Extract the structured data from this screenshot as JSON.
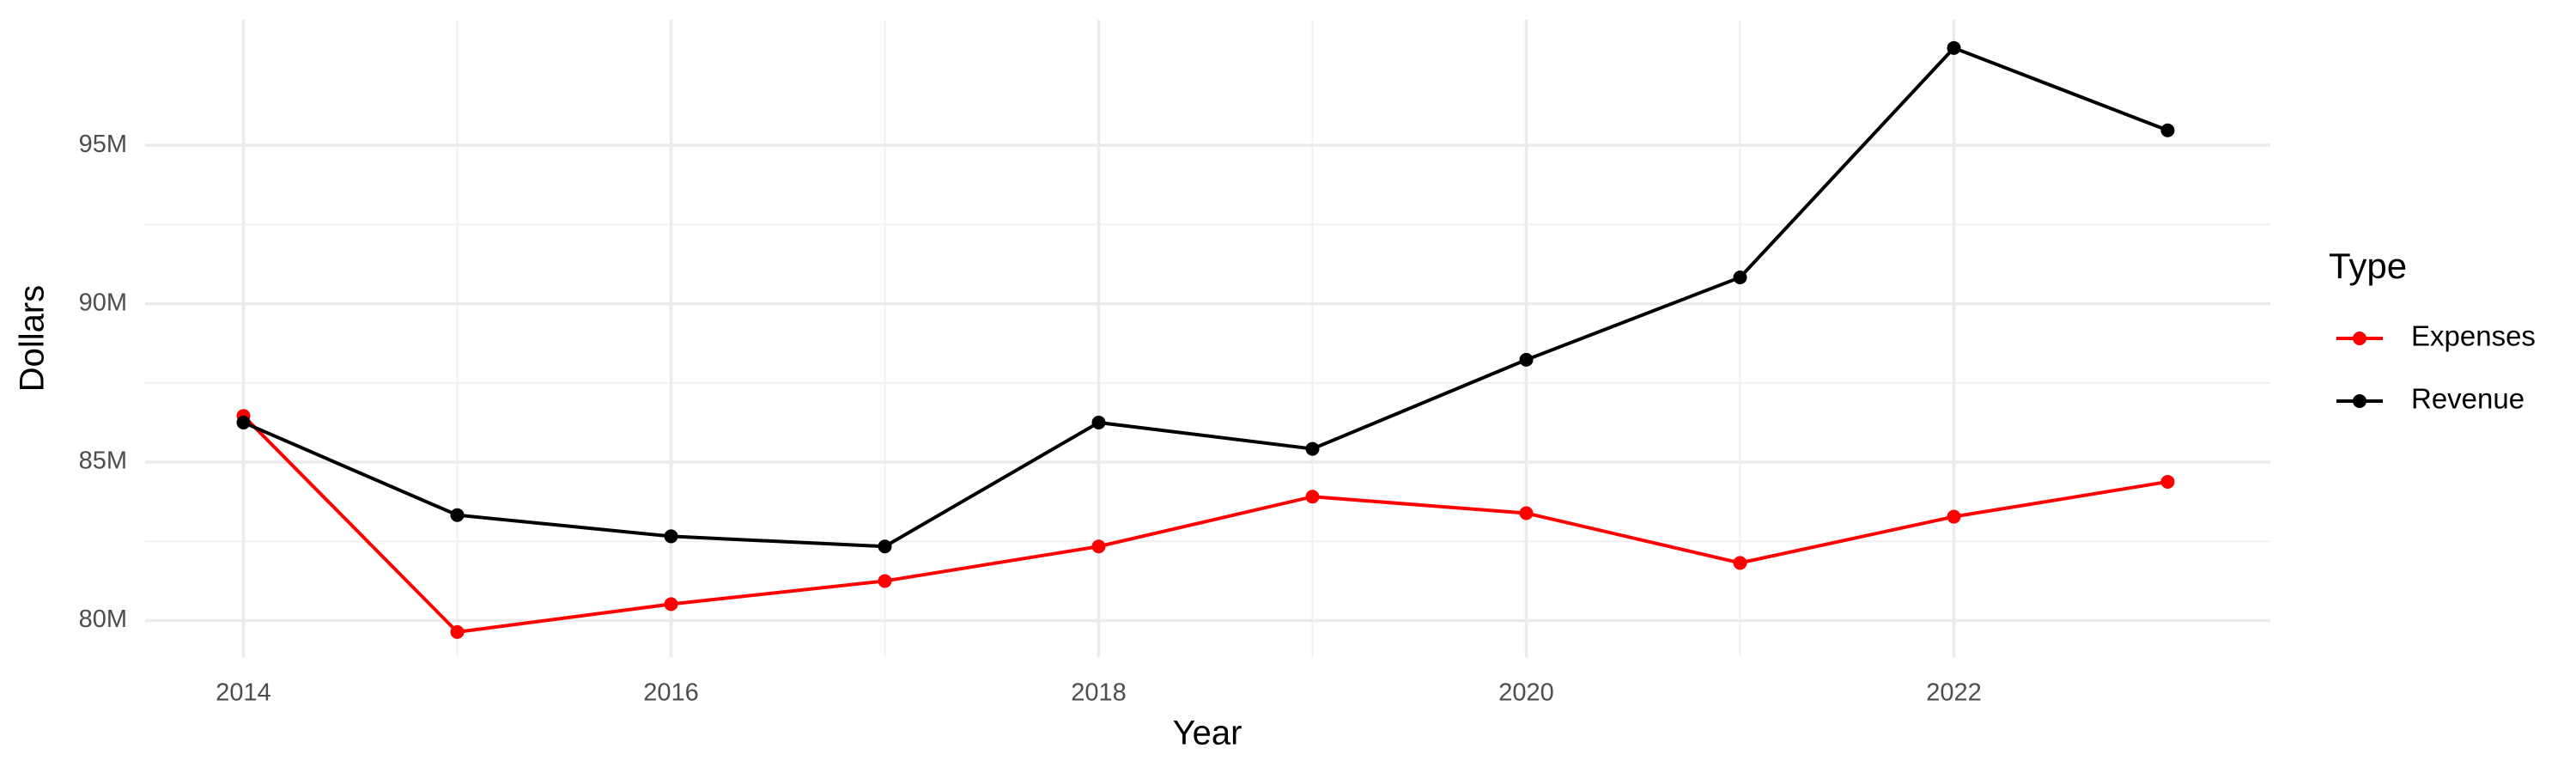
{
  "chart_data": {
    "type": "line",
    "x_label": "Year",
    "y_label": "Dollars",
    "x": [
      2014,
      2015,
      2016,
      2017,
      2018,
      2019,
      2020,
      2021,
      2022,
      2023
    ],
    "series": [
      {
        "name": "Expenses",
        "color": "#ff0000",
        "values": [
          86460000,
          79640000,
          80520000,
          81250000,
          82340000,
          83910000,
          83390000,
          81820000,
          83280000,
          84380000
        ]
      },
      {
        "name": "Revenue",
        "color": "#000000",
        "values": [
          86250000,
          83330000,
          82660000,
          82340000,
          86250000,
          85420000,
          88230000,
          90830000,
          98070000,
          95470000
        ]
      }
    ],
    "xlim": [
      2013.54,
      2023.48
    ],
    "xticks": [
      2014,
      2016,
      2018,
      2020,
      2022
    ],
    "ylim": [
      78850000,
      98960000
    ],
    "yticks": [
      {
        "value": 80000000,
        "label": "80M"
      },
      {
        "value": 85000000,
        "label": "85M"
      },
      {
        "value": 90000000,
        "label": "90M"
      },
      {
        "value": 95000000,
        "label": "95M"
      }
    ],
    "grid": true,
    "legend_title": "Type",
    "legend_position": "right"
  }
}
